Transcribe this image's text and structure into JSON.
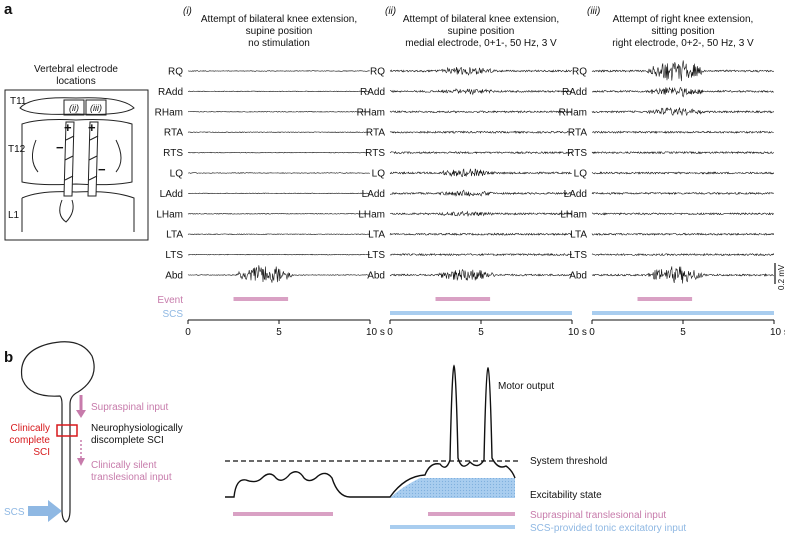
{
  "panel_a": {
    "label": "a",
    "electrode_title": [
      "Vertebral electrode",
      "locations"
    ],
    "vertebrae": [
      "T11",
      "T12",
      "L1"
    ],
    "electrode_labels": [
      "(ii)",
      "(iii)"
    ],
    "electrode_signs": [
      "+",
      "+",
      "−",
      "−"
    ],
    "columns": [
      {
        "number": "(i)",
        "title": [
          "Attempt of bilateral knee extension,",
          "supine position",
          "no stimulation"
        ]
      },
      {
        "number": "(ii)",
        "title": [
          "Attempt of bilateral knee extension,",
          "supine position",
          "medial electrode, 0+1-, 50 Hz, 3 V"
        ]
      },
      {
        "number": "(iii)",
        "title": [
          "Attempt of right knee extension,",
          "sitting position",
          "right electrode, 0+2-, 50 Hz, 3 V"
        ]
      }
    ],
    "muscles": [
      "RQ",
      "RAdd",
      "RHam",
      "RTA",
      "RTS",
      "LQ",
      "LAdd",
      "LHam",
      "LTA",
      "LTS",
      "Abd"
    ],
    "event_label": "Event",
    "scs_label": "SCS",
    "axis_ticks": [
      "0",
      "5",
      "10 s"
    ],
    "scale_bar": "0.2 mV"
  },
  "panel_b": {
    "label": "b",
    "supraspinal_input": "Supraspinal input",
    "discomplete": [
      "Neurophysiologically",
      "discomplete SCI"
    ],
    "clinically_complete": [
      "Clinically",
      "complete",
      "SCI"
    ],
    "silent_input": [
      "Clinically silent",
      "translesional input"
    ],
    "scs": "SCS",
    "motor_output": "Motor output",
    "system_threshold": "System threshold",
    "excitability_state": "Excitability state",
    "legend_pink": "Supraspinal translesional input",
    "legend_blue": "SCS-provided tonic excitatory input"
  }
}
